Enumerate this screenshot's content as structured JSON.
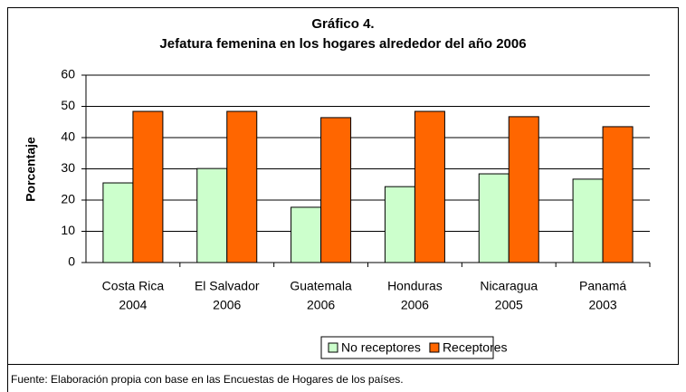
{
  "chart_data": {
    "type": "bar",
    "title": "Gráfico 4.",
    "subtitle": "Jefatura femenina en los hogares alrededor del año 2006",
    "y_label": "Porcentaje",
    "categories": [
      [
        "Costa Rica",
        "2004"
      ],
      [
        "El Salvador",
        "2006"
      ],
      [
        "Guatemala",
        "2006"
      ],
      [
        "Honduras",
        "2006"
      ],
      [
        "Nicaragua",
        "2005"
      ],
      [
        "Panamá",
        "2003"
      ]
    ],
    "series": [
      {
        "name": "No receptores",
        "color": "#ccffcc",
        "values": [
          25.5,
          30.1,
          17.7,
          24.3,
          28.4,
          26.7
        ]
      },
      {
        "name": "Receptores",
        "color": "#ff6600",
        "values": [
          48.4,
          48.4,
          46.4,
          48.4,
          46.7,
          43.5
        ]
      }
    ],
    "ylim": [
      0,
      60
    ],
    "yticks": [
      0,
      10,
      20,
      30,
      40,
      50,
      60
    ],
    "grid": true,
    "legend": "bottom",
    "source": "Fuente: Elaboración propia con base en las Encuestas de Hogares de los países."
  }
}
